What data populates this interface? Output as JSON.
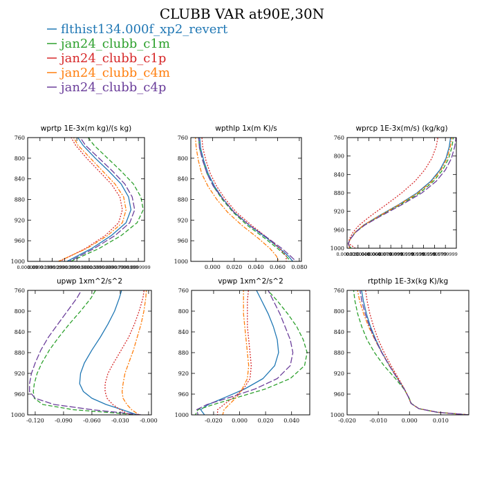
{
  "figure": {
    "title": "CLUBB VAR at90E,30N"
  },
  "legend": [
    {
      "label": "flthist134.000f_xp2_revert",
      "color": "#1f77b4",
      "dash": "solid"
    },
    {
      "label": "jan24_clubb_c1m",
      "color": "#2ca02c",
      "dash": "dash"
    },
    {
      "label": "jan24_clubb_c1p",
      "color": "#d62728",
      "dash": "dot"
    },
    {
      "label": "jan24_clubb_c4m",
      "color": "#ff7f0e",
      "dash": "dashdot"
    },
    {
      "label": "jan24_clubb_c4p",
      "color": "#6a3d9a",
      "dash": "longdash"
    }
  ],
  "chart_data": [
    {
      "type": "line",
      "title": "wprtp   1E-3x(m kg)/(s kg)",
      "xlim": [
        0.0,
        0.95
      ],
      "ylim": [
        760,
        1000
      ],
      "xticks": [
        0.0,
        0.1,
        0.2,
        0.3,
        0.4,
        0.5,
        0.6,
        0.7,
        0.8,
        0.9
      ],
      "xtick_labels": [
        "0.000000",
        "0.0999999",
        "0.1999999",
        "0.2999999",
        "0.3999999",
        "0.5000000",
        "0.5999999",
        "0.6999999",
        "0.7999999",
        "0.8999999"
      ],
      "yticks": [
        760,
        800,
        840,
        880,
        920,
        960,
        1000
      ],
      "ytick_labels": [
        "760",
        "800",
        "840",
        "880",
        "920",
        "960",
        "1000"
      ],
      "y": [
        750,
        775,
        800,
        825,
        850,
        875,
        900,
        925,
        950,
        975,
        1000
      ],
      "series": [
        {
          "name": "flthist134.000f_xp2_revert",
          "x": [
            0.38,
            0.45,
            0.55,
            0.66,
            0.76,
            0.82,
            0.84,
            0.8,
            0.68,
            0.52,
            0.32
          ]
        },
        {
          "name": "jan24_clubb_c1m",
          "x": [
            0.46,
            0.54,
            0.65,
            0.76,
            0.86,
            0.92,
            0.94,
            0.89,
            0.76,
            0.58,
            0.35
          ]
        },
        {
          "name": "jan24_clubb_c1p",
          "x": [
            0.33,
            0.39,
            0.48,
            0.58,
            0.68,
            0.75,
            0.77,
            0.74,
            0.63,
            0.47,
            0.26
          ]
        },
        {
          "name": "jan24_clubb_c4m",
          "x": [
            0.35,
            0.41,
            0.51,
            0.61,
            0.71,
            0.78,
            0.8,
            0.77,
            0.65,
            0.48,
            0.25
          ]
        },
        {
          "name": "jan24_clubb_c4p",
          "x": [
            0.4,
            0.47,
            0.58,
            0.69,
            0.79,
            0.85,
            0.87,
            0.83,
            0.71,
            0.54,
            0.34
          ]
        }
      ]
    },
    {
      "type": "line",
      "title": "wpthlp   1x(m K)/s",
      "xlim": [
        -0.02,
        0.082
      ],
      "ylim": [
        760,
        1000
      ],
      "xticks": [
        0.0,
        0.02,
        0.04,
        0.06,
        0.08
      ],
      "xtick_labels": [
        "0.000",
        "0.020",
        "0.040",
        "0.060",
        "0.080"
      ],
      "yticks": [
        760,
        800,
        840,
        880,
        920,
        960,
        1000
      ],
      "ytick_labels": [
        "760",
        "800",
        "840",
        "880",
        "920",
        "960",
        "1000"
      ],
      "y": [
        755,
        780,
        805,
        830,
        855,
        880,
        905,
        930,
        955,
        975,
        990,
        1000
      ],
      "series": [
        {
          "name": "flthist134.000f_xp2_revert",
          "x": [
            -0.012,
            -0.011,
            -0.008,
            -0.004,
            0.002,
            0.01,
            0.02,
            0.034,
            0.05,
            0.062,
            0.07,
            0.074
          ]
        },
        {
          "name": "jan24_clubb_c1m",
          "x": [
            -0.013,
            -0.012,
            -0.009,
            -0.005,
            0.001,
            0.009,
            0.019,
            0.032,
            0.048,
            0.06,
            0.068,
            0.072
          ]
        },
        {
          "name": "jan24_clubb_c1p",
          "x": [
            -0.01,
            -0.009,
            -0.006,
            -0.002,
            0.004,
            0.012,
            0.022,
            0.036,
            0.051,
            0.062,
            0.068,
            0.068
          ]
        },
        {
          "name": "jan24_clubb_c4m",
          "x": [
            -0.016,
            -0.015,
            -0.013,
            -0.01,
            -0.004,
            0.004,
            0.014,
            0.027,
            0.042,
            0.053,
            0.059,
            0.061
          ]
        },
        {
          "name": "jan24_clubb_c4p",
          "x": [
            -0.013,
            -0.012,
            -0.009,
            -0.005,
            0.001,
            0.01,
            0.02,
            0.034,
            0.051,
            0.064,
            0.072,
            0.077
          ]
        }
      ]
    },
    {
      "type": "line",
      "title": "wprcp   1E-3x(m/s) (kg/kg)",
      "xlim": [
        0.0,
        0.2
      ],
      "ylim": [
        760,
        1000
      ],
      "xticks": [
        0.0,
        0.02,
        0.04,
        0.06,
        0.08,
        0.1,
        0.12,
        0.14,
        0.16,
        0.18
      ],
      "xtick_labels": [
        "0.000000",
        "0.0200000",
        "0.0400000",
        "0.0600000",
        "0.0799999",
        "0.0999999",
        "0.1199999",
        "0.1399999",
        "0.1599999",
        "0.1799999"
      ],
      "yticks": [
        760,
        800,
        840,
        880,
        920,
        960,
        1000
      ],
      "ytick_labels": [
        "760",
        "800",
        "840",
        "880",
        "920",
        "960",
        "1000"
      ],
      "y": [
        755,
        780,
        805,
        830,
        855,
        880,
        905,
        930,
        950,
        965,
        980,
        990,
        1000
      ],
      "series": [
        {
          "name": "flthist134.000f_xp2_revert",
          "x": [
            0.19,
            0.187,
            0.181,
            0.17,
            0.153,
            0.128,
            0.095,
            0.058,
            0.03,
            0.015,
            0.006,
            0.002,
            0.006
          ]
        },
        {
          "name": "jan24_clubb_c1m",
          "x": [
            0.195,
            0.192,
            0.186,
            0.175,
            0.158,
            0.133,
            0.098,
            0.06,
            0.031,
            0.015,
            0.006,
            0.002,
            0.007
          ]
        },
        {
          "name": "jan24_clubb_c1p",
          "x": [
            0.167,
            0.163,
            0.155,
            0.142,
            0.124,
            0.1,
            0.072,
            0.043,
            0.022,
            0.011,
            0.004,
            0.003,
            0.015
          ]
        },
        {
          "name": "jan24_clubb_c4m",
          "x": [
            0.192,
            0.189,
            0.183,
            0.172,
            0.155,
            0.13,
            0.096,
            0.059,
            0.03,
            0.015,
            0.006,
            0.002,
            0.005
          ]
        },
        {
          "name": "jan24_clubb_c4p",
          "x": [
            0.2,
            0.197,
            0.191,
            0.18,
            0.163,
            0.137,
            0.101,
            0.062,
            0.032,
            0.016,
            0.006,
            0.002,
            0.006
          ]
        }
      ]
    },
    {
      "type": "line",
      "title": "upwp   1xm^2/s^2",
      "xlim": [
        -0.128,
        0.003
      ],
      "ylim": [
        760,
        1000
      ],
      "xticks": [
        -0.12,
        -0.09,
        -0.06,
        -0.03,
        0.0
      ],
      "xtick_labels": [
        "-0.120",
        "-0.090",
        "-0.060",
        "-0.030",
        "-0.000"
      ],
      "yticks": [
        760,
        800,
        840,
        880,
        920,
        960,
        1000
      ],
      "ytick_labels": [
        "760",
        "800",
        "840",
        "880",
        "920",
        "960",
        "1000"
      ],
      "y": [
        750,
        775,
        800,
        825,
        850,
        875,
        900,
        920,
        940,
        955,
        968,
        980,
        990,
        1000
      ],
      "series": [
        {
          "name": "flthist134.000f_xp2_revert",
          "x": [
            -0.027,
            -0.031,
            -0.036,
            -0.043,
            -0.051,
            -0.06,
            -0.068,
            -0.072,
            -0.073,
            -0.069,
            -0.06,
            -0.045,
            -0.028,
            -0.012
          ]
        },
        {
          "name": "jan24_clubb_c1m",
          "x": [
            -0.053,
            -0.061,
            -0.072,
            -0.084,
            -0.095,
            -0.105,
            -0.113,
            -0.118,
            -0.121,
            -0.122,
            -0.121,
            -0.112,
            -0.08,
            -0.01
          ]
        },
        {
          "name": "jan24_clubb_c1p",
          "x": [
            -0.004,
            -0.006,
            -0.01,
            -0.015,
            -0.021,
            -0.029,
            -0.037,
            -0.043,
            -0.046,
            -0.046,
            -0.044,
            -0.038,
            -0.03,
            -0.02
          ]
        },
        {
          "name": "jan24_clubb_c4m",
          "x": [
            -0.002,
            -0.003,
            -0.005,
            -0.008,
            -0.012,
            -0.016,
            -0.021,
            -0.025,
            -0.027,
            -0.028,
            -0.027,
            -0.023,
            -0.018,
            -0.01
          ]
        },
        {
          "name": "jan24_clubb_c4p",
          "x": [
            -0.068,
            -0.076,
            -0.086,
            -0.096,
            -0.106,
            -0.114,
            -0.12,
            -0.124,
            -0.126,
            -0.126,
            -0.12,
            -0.1,
            -0.06,
            -0.008
          ]
        }
      ]
    },
    {
      "type": "line",
      "title": "vpwp   1xm^2/s^2",
      "xlim": [
        -0.037,
        0.054
      ],
      "ylim": [
        760,
        1000
      ],
      "xticks": [
        -0.02,
        0.0,
        0.02,
        0.04
      ],
      "xtick_labels": [
        "-0.020",
        "0.000",
        "0.020",
        "0.040"
      ],
      "yticks": [
        760,
        800,
        840,
        880,
        920,
        960,
        1000
      ],
      "ytick_labels": [
        "760",
        "800",
        "840",
        "880",
        "920",
        "960",
        "1000"
      ],
      "y": [
        755,
        780,
        805,
        830,
        855,
        880,
        905,
        930,
        950,
        965,
        980,
        990,
        1000
      ],
      "series": [
        {
          "name": "flthist134.000f_xp2_revert",
          "x": [
            0.012,
            0.017,
            0.022,
            0.026,
            0.029,
            0.03,
            0.027,
            0.018,
            0.004,
            -0.01,
            -0.024,
            -0.03,
            -0.027
          ]
        },
        {
          "name": "jan24_clubb_c1m",
          "x": [
            0.02,
            0.029,
            0.037,
            0.044,
            0.049,
            0.052,
            0.05,
            0.039,
            0.02,
            0.0,
            -0.02,
            -0.032,
            -0.034
          ]
        },
        {
          "name": "jan24_clubb_c1p",
          "x": [
            0.007,
            0.006,
            0.006,
            0.006,
            0.007,
            0.008,
            0.009,
            0.008,
            0.003,
            -0.004,
            -0.012,
            -0.017,
            -0.017
          ]
        },
        {
          "name": "jan24_clubb_c4m",
          "x": [
            0.003,
            0.003,
            0.003,
            0.004,
            0.005,
            0.006,
            0.007,
            0.006,
            0.002,
            -0.002,
            -0.008,
            -0.012,
            -0.013
          ]
        },
        {
          "name": "jan24_clubb_c4p",
          "x": [
            0.021,
            0.026,
            0.031,
            0.035,
            0.039,
            0.041,
            0.039,
            0.029,
            0.012,
            -0.006,
            -0.025,
            -0.033,
            -0.032
          ]
        }
      ]
    },
    {
      "type": "line",
      "title": "rtpthlp   1E-3x(kg K)/kg",
      "xlim": [
        -0.02,
        0.019
      ],
      "ylim": [
        760,
        1000
      ],
      "xticks": [
        -0.02,
        -0.01,
        0.0,
        0.01
      ],
      "xtick_labels": [
        "-0.020",
        "-0.010",
        "0.000",
        "0.010"
      ],
      "yticks": [
        760,
        800,
        840,
        880,
        920,
        960,
        1000
      ],
      "ytick_labels": [
        "760",
        "800",
        "840",
        "880",
        "920",
        "960",
        "1000"
      ],
      "y": [
        755,
        780,
        805,
        830,
        855,
        880,
        905,
        930,
        950,
        965,
        978,
        988,
        995,
        1000
      ],
      "series": [
        {
          "name": "flthist134.000f_xp2_revert",
          "x": [
            -0.0155,
            -0.0148,
            -0.0138,
            -0.0125,
            -0.0108,
            -0.0088,
            -0.0064,
            -0.0038,
            -0.0017,
            -0.0004,
            0.0005,
            0.003,
            0.009,
            0.019
          ]
        },
        {
          "name": "jan24_clubb_c1m",
          "x": [
            -0.018,
            -0.0175,
            -0.0166,
            -0.0153,
            -0.0136,
            -0.0112,
            -0.0082,
            -0.0045,
            -0.0018,
            -0.0003,
            0.0006,
            0.003,
            0.009,
            0.019
          ]
        },
        {
          "name": "jan24_clubb_c1p",
          "x": [
            -0.0142,
            -0.0136,
            -0.0127,
            -0.0115,
            -0.01,
            -0.0081,
            -0.0059,
            -0.0035,
            -0.0016,
            -0.0004,
            0.0005,
            0.003,
            0.009,
            0.019
          ]
        },
        {
          "name": "jan24_clubb_c4m",
          "x": [
            -0.0168,
            -0.016,
            -0.0147,
            -0.0131,
            -0.0111,
            -0.0089,
            -0.0064,
            -0.0038,
            -0.0017,
            -0.0004,
            0.0005,
            0.003,
            0.009,
            0.019
          ]
        },
        {
          "name": "jan24_clubb_c4p",
          "x": [
            -0.016,
            -0.0153,
            -0.0142,
            -0.0128,
            -0.011,
            -0.0089,
            -0.0065,
            -0.0039,
            -0.0017,
            -0.0004,
            0.0005,
            0.003,
            0.009,
            0.019
          ]
        }
      ]
    }
  ]
}
